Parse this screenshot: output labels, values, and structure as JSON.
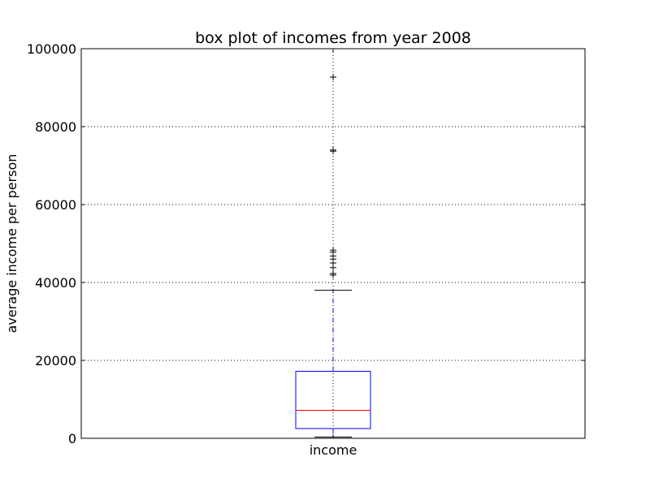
{
  "chart_data": {
    "type": "box",
    "title": "box plot of incomes from year 2008",
    "xlabel": "",
    "ylabel": "average income per person",
    "ylim": [
      0,
      100000
    ],
    "yticks": [
      0,
      20000,
      40000,
      60000,
      80000,
      100000
    ],
    "ytick_labels": [
      "0",
      "20000",
      "40000",
      "60000",
      "80000",
      "100000"
    ],
    "categories": [
      "income"
    ],
    "grid": true,
    "boxes": [
      {
        "name": "income",
        "whisker_low": 300,
        "q1": 2500,
        "median": 7200,
        "q3": 17200,
        "whisker_high": 38000,
        "outliers": [
          41900,
          42300,
          43800,
          45000,
          46000,
          46800,
          47800,
          48300,
          73700,
          74000,
          92700
        ]
      }
    ],
    "colors": {
      "box": "#0000ff",
      "median": "#ff0000",
      "whisker": "#0000ff",
      "cap": "#000000",
      "outlier": "#000000",
      "grid": "#000000"
    }
  }
}
